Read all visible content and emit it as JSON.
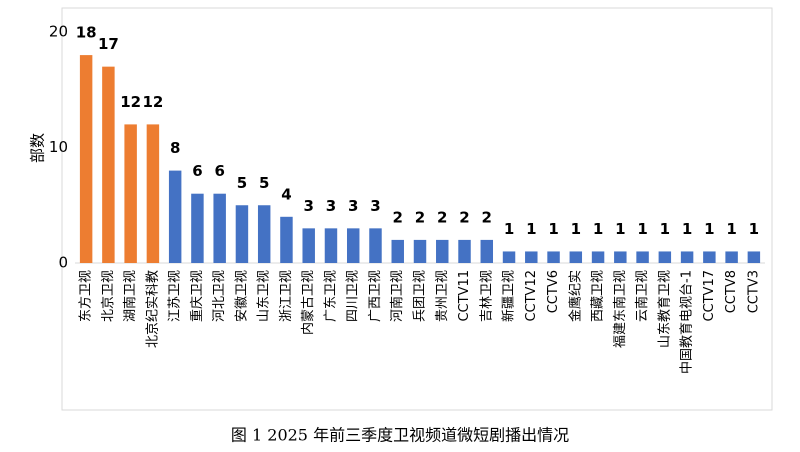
{
  "chart_data": {
    "type": "bar",
    "y_label": "部数",
    "caption": "图 1 2025 年前三季度卫视频道微短剧播出情况",
    "categories": [
      "东方卫视",
      "北京卫视",
      "湖南卫视",
      "北京纪实科教",
      "江苏卫视",
      "重庆卫视",
      "河北卫视",
      "安徽卫视",
      "山东卫视",
      "浙江卫视",
      "内蒙古卫视",
      "广东卫视",
      "四川卫视",
      "广西卫视",
      "河南卫视",
      "兵团卫视",
      "贵州卫视",
      "CCTV11",
      "吉林卫视",
      "新疆卫视",
      "CCTV12",
      "CCTV6",
      "金鹰纪实",
      "西藏卫视",
      "福建东南卫视",
      "云南卫视",
      "山东教育卫视",
      "中国教育电视台-1",
      "CCTV17",
      "CCTV8",
      "CCTV3"
    ],
    "values": [
      18,
      17,
      12,
      12,
      8,
      6,
      6,
      5,
      5,
      4,
      3,
      3,
      3,
      3,
      2,
      2,
      2,
      2,
      2,
      1,
      1,
      1,
      1,
      1,
      1,
      1,
      1,
      1,
      1,
      1,
      1
    ],
    "colors": [
      "#ed7d31",
      "#ed7d31",
      "#ed7d31",
      "#ed7d31",
      "#4472c4",
      "#4472c4",
      "#4472c4",
      "#4472c4",
      "#4472c4",
      "#4472c4",
      "#4472c4",
      "#4472c4",
      "#4472c4",
      "#4472c4",
      "#4472c4",
      "#4472c4",
      "#4472c4",
      "#4472c4",
      "#4472c4",
      "#4472c4",
      "#4472c4",
      "#4472c4",
      "#4472c4",
      "#4472c4",
      "#4472c4",
      "#4472c4",
      "#4472c4",
      "#4472c4",
      "#4472c4",
      "#4472c4",
      "#4472c4"
    ],
    "ylim": [
      0,
      20
    ],
    "yticks": [
      0,
      10,
      20
    ],
    "grid": false
  }
}
